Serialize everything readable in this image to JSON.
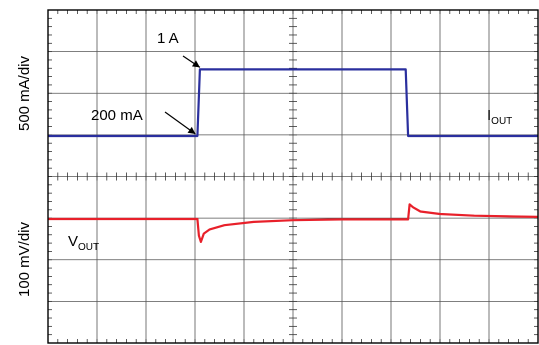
{
  "chart_data": {
    "type": "line",
    "title": "",
    "xlabel": "",
    "grid": true,
    "divisions": {
      "x": 10,
      "y": 8
    },
    "time_axis": {
      "label": "",
      "range": [
        0,
        10
      ],
      "unit": "div"
    },
    "panels": [
      {
        "ylabel": "500 mA/div",
        "trace_label": "I",
        "trace_label_sub": "OUT",
        "color": "#2a2f9e",
        "x": [
          0,
          3.05,
          3.1,
          7.3,
          7.35,
          10
        ],
        "values": [
          200,
          200,
          1000,
          1000,
          200,
          200
        ],
        "unit": "mA",
        "annotations": [
          {
            "text": "1 A",
            "arrow_to": {
              "x": 3.1,
              "y": 1000
            }
          },
          {
            "text": "200 mA",
            "arrow_to": {
              "x": 3.05,
              "y": 200
            }
          }
        ]
      },
      {
        "ylabel": "100 mV/div",
        "trace_label": "V",
        "trace_label_sub": "OUT",
        "color": "#e8202a",
        "x": [
          0,
          3.05,
          3.08,
          3.12,
          3.18,
          3.3,
          3.6,
          4.2,
          5.0,
          6.0,
          7.35,
          7.38,
          7.45,
          7.6,
          8.0,
          8.7,
          9.5,
          10
        ],
        "values": [
          0,
          0,
          -40,
          -55,
          -35,
          -25,
          -15,
          -7,
          -3,
          -1,
          -1,
          35,
          28,
          18,
          12,
          8,
          6,
          5
        ],
        "unit": "mV offset"
      }
    ]
  }
}
